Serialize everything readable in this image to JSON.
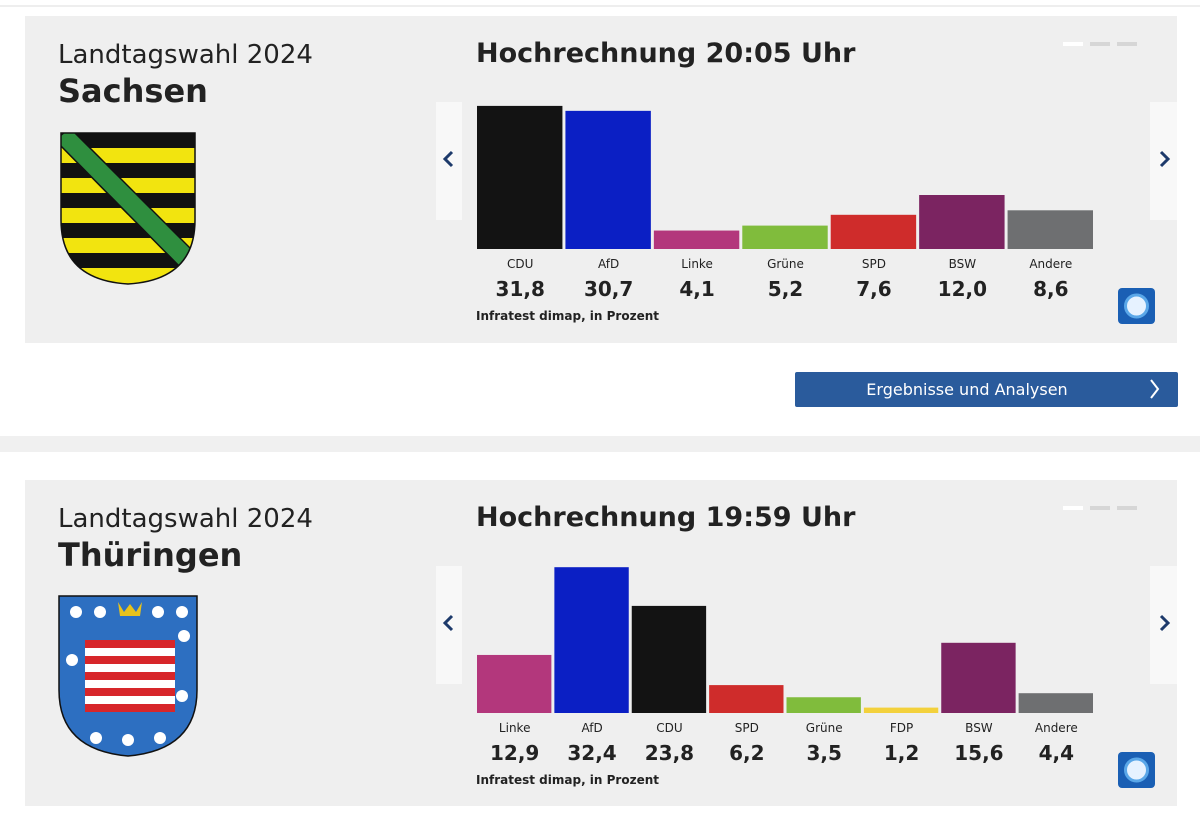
{
  "panels": [
    {
      "heading": "Landtagswahl 2024",
      "state": "Sachsen"
    },
    {
      "heading": "Landtagswahl 2024",
      "state": "Thüringen"
    }
  ],
  "button": "Ergebnisse und Analysen",
  "chart_data": [
    {
      "type": "bar",
      "title": "Hochrechnung 20:05 Uhr",
      "categories": [
        "CDU",
        "AfD",
        "Linke",
        "Grüne",
        "SPD",
        "BSW",
        "Andere"
      ],
      "values": [
        31.8,
        30.7,
        4.1,
        5.2,
        7.6,
        12.0,
        8.6
      ],
      "value_labels": [
        "31,8",
        "30,7",
        "4,1",
        "5,2",
        "7,6",
        "12,0",
        "8,6"
      ],
      "colors": [
        "#131313",
        "#0b1fc4",
        "#b3377c",
        "#80bc3c",
        "#cf2c2b",
        "#7b2461",
        "#6e6f71"
      ],
      "source": "Infratest dimap, in Prozent"
    },
    {
      "type": "bar",
      "title": "Hochrechnung 19:59 Uhr",
      "categories": [
        "Linke",
        "AfD",
        "CDU",
        "SPD",
        "Grüne",
        "FDP",
        "BSW",
        "Andere"
      ],
      "values": [
        12.9,
        32.4,
        23.8,
        6.2,
        3.5,
        1.2,
        15.6,
        4.4
      ],
      "value_labels": [
        "12,9",
        "32,4",
        "23,8",
        "6,2",
        "3,5",
        "1,2",
        "15,6",
        "4,4"
      ],
      "colors": [
        "#b3377c",
        "#0b1fc4",
        "#131313",
        "#cf2c2b",
        "#80bc3c",
        "#f3d13c",
        "#7b2461",
        "#6e6f71"
      ],
      "source": "Infratest dimap, in Prozent"
    }
  ]
}
